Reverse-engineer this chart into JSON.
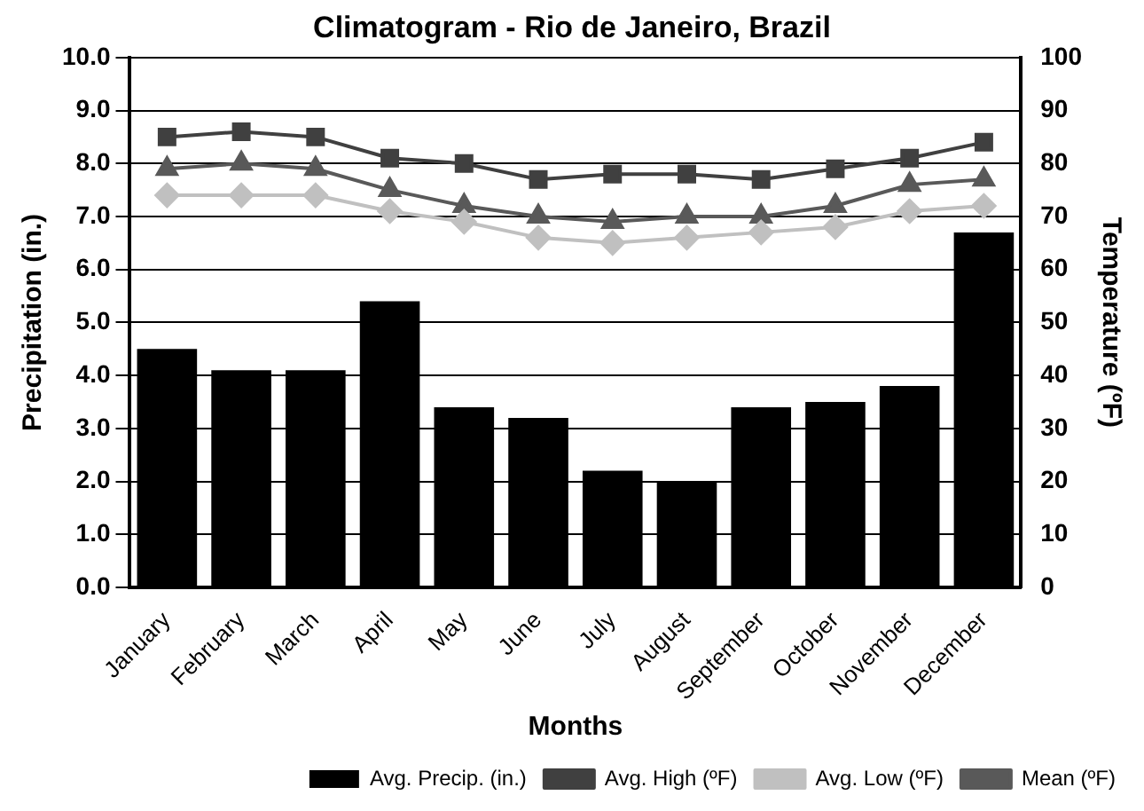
{
  "chart_data": {
    "type": "bar",
    "title": "Climatogram - Rio de Janeiro, Brazil",
    "xlabel": "Months",
    "ylabel": "Precipitation (in.)",
    "y2label": "Temperature (ºF)",
    "categories": [
      "January",
      "February",
      "March",
      "April",
      "May",
      "June",
      "July",
      "August",
      "September",
      "October",
      "November",
      "December"
    ],
    "series": [
      {
        "name": "Avg. Precip. (in.)",
        "color": "#000000",
        "values": [
          4.5,
          4.1,
          4.1,
          5.4,
          3.4,
          3.2,
          2.2,
          2.0,
          3.4,
          3.5,
          3.8,
          6.7
        ]
      },
      {
        "name": "Avg. High (ºF)",
        "type": "line",
        "axis": "y2",
        "marker": "square",
        "color": "#404040",
        "values": [
          85,
          86,
          85,
          81,
          80,
          77,
          78,
          78,
          77,
          79,
          81,
          84
        ]
      },
      {
        "name": "Avg. Low (ºF)",
        "type": "line",
        "axis": "y2",
        "marker": "diamond",
        "color": "#c0c0c0",
        "values": [
          74,
          74,
          74,
          71,
          69,
          66,
          65,
          66,
          67,
          68,
          71,
          72
        ]
      },
      {
        "name": "Mean (ºF)",
        "type": "line",
        "axis": "y2",
        "marker": "triangle",
        "color": "#595959",
        "values": [
          79,
          80,
          79,
          75,
          72,
          70,
          69,
          70,
          70,
          72,
          76,
          77
        ]
      }
    ],
    "ylim": [
      0,
      10
    ],
    "yticks": [
      {
        "value": 0,
        "label": "0.0"
      },
      {
        "value": 1,
        "label": "1.0"
      },
      {
        "value": 2,
        "label": "2.0"
      },
      {
        "value": 3,
        "label": "3.0"
      },
      {
        "value": 4,
        "label": "4.0"
      },
      {
        "value": 5,
        "label": "5.0"
      },
      {
        "value": 6,
        "label": "6.0"
      },
      {
        "value": 7,
        "label": "7.0"
      },
      {
        "value": 8,
        "label": "8.0"
      },
      {
        "value": 9,
        "label": "9.0"
      },
      {
        "value": 10,
        "label": "10.0"
      }
    ],
    "y2lim": [
      0,
      100
    ],
    "y2ticks": [
      0,
      10,
      20,
      30,
      40,
      50,
      60,
      70,
      80,
      90,
      100
    ],
    "grid": "y",
    "legend": "bottom right"
  }
}
